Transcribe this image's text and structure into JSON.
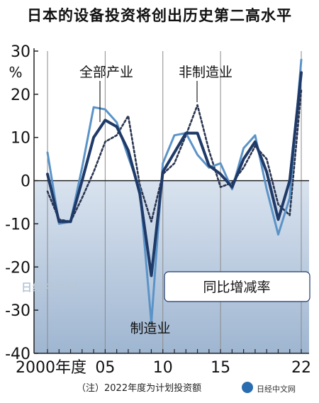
{
  "title": "日本的设备投资将创出历史第二高水平",
  "note": "（注）2022年度为计划投资额",
  "source": "日经中文网",
  "watermark": "日经中文网",
  "legend_box": "同比增减率",
  "colors": {
    "all_industry": "#1f3a68",
    "manufacturing": "#5b93c7",
    "non_manufacturing": "#2a3550",
    "negative_bg_top": "#d9e3ef",
    "negative_bg_bottom": "#9fb6d1"
  },
  "chart_data": {
    "type": "line",
    "x": [
      2000,
      2001,
      2002,
      2003,
      2004,
      2005,
      2006,
      2007,
      2008,
      2009,
      2010,
      2011,
      2012,
      2013,
      2014,
      2015,
      2016,
      2017,
      2018,
      2019,
      2020,
      2021,
      2022
    ],
    "xticks": [
      {
        "value": 2000,
        "label": "2000年度"
      },
      {
        "value": 2005,
        "label": "05"
      },
      {
        "value": 2010,
        "label": "10"
      },
      {
        "value": 2015,
        "label": "15"
      },
      {
        "value": 2022,
        "label": "22"
      }
    ],
    "ylim": [
      -40,
      30
    ],
    "yticks": [
      -40,
      -30,
      -20,
      -10,
      0,
      10,
      20,
      30
    ],
    "yunit": "%",
    "series": [
      {
        "name": "全部产业",
        "key": "all_industry",
        "style": "solid-thick",
        "values": [
          1.5,
          -9.5,
          -9.5,
          0,
          10,
          14,
          12.5,
          7,
          -3,
          -22,
          2,
          6.5,
          11,
          11,
          3.5,
          1.5,
          -1.5,
          5,
          9,
          2,
          -9,
          0,
          25
        ]
      },
      {
        "name": "制造业",
        "key": "manufacturing",
        "style": "solid",
        "values": [
          6.5,
          -10,
          -9.5,
          3,
          17,
          16.5,
          13.5,
          5.5,
          -2,
          -33,
          4,
          10.5,
          11,
          6,
          3,
          4,
          -2,
          7.5,
          10.5,
          -2,
          -12.5,
          -4,
          28
        ]
      },
      {
        "name": "非制造业",
        "key": "non_manufacturing",
        "style": "dotted",
        "values": [
          -2.5,
          -9,
          -9.5,
          -4,
          2,
          9,
          10.5,
          15,
          -1,
          -9.5,
          1.5,
          4,
          10.5,
          17.5,
          7,
          -1.5,
          -0.5,
          3,
          8,
          5,
          -5.5,
          -8,
          21
        ]
      }
    ],
    "annotations": [
      {
        "text": "全部产业",
        "series": "all_industry"
      },
      {
        "text": "非制造业",
        "series": "non_manufacturing"
      },
      {
        "text": "制造业",
        "series": "manufacturing"
      }
    ]
  }
}
